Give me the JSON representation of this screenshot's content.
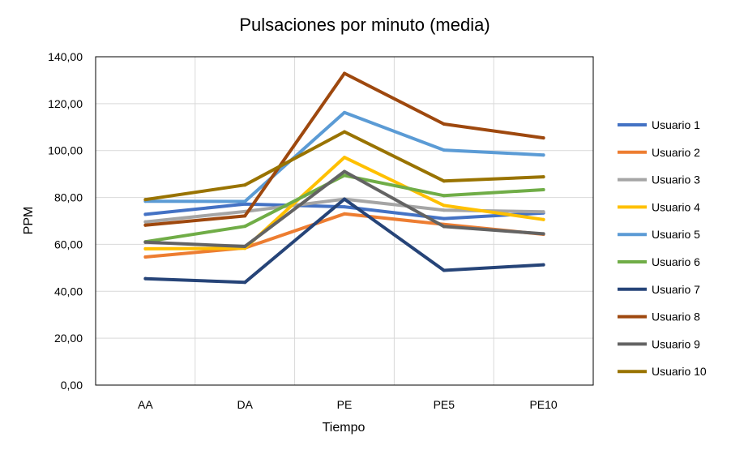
{
  "chart_data": {
    "type": "line",
    "title": "Pulsaciones por minuto (media)",
    "xlabel": "Tiempo",
    "ylabel": "PPM",
    "categories": [
      "AA",
      "DA",
      "PE",
      "PE5",
      "PE10"
    ],
    "ylim": [
      0,
      140
    ],
    "yticks": [
      0,
      20,
      40,
      60,
      80,
      100,
      120,
      140
    ],
    "ytick_labels": [
      "0,00",
      "20,00",
      "40,00",
      "60,00",
      "80,00",
      "100,00",
      "120,00",
      "140,00"
    ],
    "grid": true,
    "legend_position": "right",
    "series": [
      {
        "name": "Usuario 1",
        "color": "#4472C4",
        "values": [
          72.8,
          77.2,
          76.0,
          71.0,
          73.4
        ]
      },
      {
        "name": "Usuario 2",
        "color": "#ED7D31",
        "values": [
          54.6,
          58.5,
          73.0,
          68.5,
          64.3
        ]
      },
      {
        "name": "Usuario 3",
        "color": "#A5A5A5",
        "values": [
          69.6,
          74.0,
          79.3,
          74.6,
          73.9
        ]
      },
      {
        "name": "Usuario 4",
        "color": "#FFC000",
        "values": [
          58.1,
          58.3,
          97.1,
          76.6,
          70.6
        ]
      },
      {
        "name": "Usuario 5",
        "color": "#5B9BD5",
        "values": [
          78.4,
          78.3,
          116.2,
          100.2,
          98.1
        ]
      },
      {
        "name": "Usuario 6",
        "color": "#70AD47",
        "values": [
          61.1,
          67.7,
          89.4,
          80.8,
          83.3
        ]
      },
      {
        "name": "Usuario 7",
        "color": "#264478",
        "values": [
          45.4,
          43.8,
          79.3,
          48.9,
          51.3
        ]
      },
      {
        "name": "Usuario 8",
        "color": "#9E480E",
        "values": [
          68.2,
          72.1,
          132.9,
          111.3,
          105.4
        ]
      },
      {
        "name": "Usuario 9",
        "color": "#636363",
        "values": [
          60.9,
          59.1,
          91.1,
          67.6,
          64.5
        ]
      },
      {
        "name": "Usuario 10",
        "color": "#997300",
        "values": [
          79.1,
          85.3,
          108.0,
          87.0,
          88.8
        ]
      }
    ]
  }
}
